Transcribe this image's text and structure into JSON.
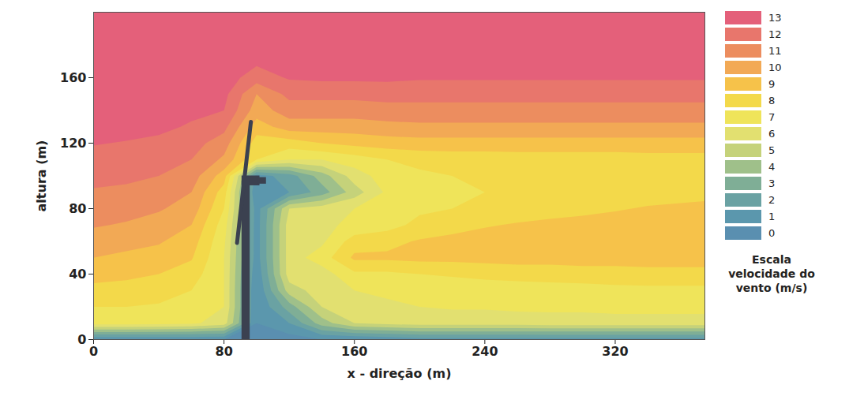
{
  "chart_data": {
    "type": "heatmap",
    "x_label": "x - direção (m)",
    "y_label": "altura (m)",
    "xlim": [
      0,
      375
    ],
    "ylim": [
      0,
      200
    ],
    "xticks": [
      0,
      80,
      160,
      240,
      320
    ],
    "yticks": [
      0,
      40,
      80,
      120,
      160
    ],
    "x": [
      0,
      20,
      40,
      60,
      80,
      100,
      120,
      140,
      160,
      180,
      200,
      220,
      240,
      260,
      280,
      300,
      320,
      340,
      360,
      380
    ],
    "y": [
      0,
      10,
      20,
      30,
      40,
      50,
      60,
      70,
      80,
      90,
      100,
      110,
      120,
      130,
      140,
      150,
      160,
      170,
      180,
      190,
      200
    ],
    "wind_speed": [
      [
        1,
        1,
        1,
        1,
        1,
        0.5,
        0.5,
        1,
        1,
        1.2,
        1.5,
        1.5,
        1.5,
        1.5,
        1.5,
        1.5,
        1.5,
        1.5,
        1.5,
        1.5
      ],
      [
        7.5,
        7.5,
        7.4,
        7.2,
        6.5,
        1,
        2,
        4.5,
        6,
        6.3,
        6.5,
        6.5,
        6.5,
        6.5,
        6.6,
        6.6,
        6.6,
        6.6,
        6.6,
        6.6
      ],
      [
        8,
        8,
        7.9,
        7.6,
        7,
        1,
        3.5,
        6,
        6.5,
        6.8,
        7,
        7.1,
        7.1,
        7.2,
        7.2,
        7.2,
        7.3,
        7.3,
        7.3,
        7.3
      ],
      [
        8.6,
        8.5,
        8.4,
        8,
        7,
        1,
        5.5,
        6.5,
        7,
        7.2,
        7.5,
        7.5,
        7.6,
        7.6,
        7.7,
        7.7,
        7.8,
        7.8,
        7.8,
        7.8
      ],
      [
        9.5,
        9.3,
        9,
        8.5,
        7,
        1.2,
        6.5,
        6.5,
        7.8,
        7.8,
        8,
        8.1,
        8.2,
        8.3,
        8.3,
        8.4,
        8.4,
        8.5,
        8.5,
        8.5
      ],
      [
        10,
        9.8,
        9.6,
        9.1,
        7,
        1.5,
        6.5,
        7.5,
        9.2,
        9.2,
        9.3,
        9.3,
        9.4,
        9.5,
        9.5,
        9.6,
        9.6,
        9.7,
        9.7,
        9.7
      ],
      [
        10.5,
        10.3,
        10.1,
        9.5,
        7.2,
        1.5,
        6.5,
        6.8,
        8.5,
        8.7,
        9.1,
        9.3,
        9.5,
        9.6,
        9.6,
        9.7,
        9.7,
        9.8,
        9.8,
        9.8
      ],
      [
        11.1,
        10.9,
        10.6,
        10,
        7.5,
        1.5,
        6.5,
        6.8,
        7.2,
        7.6,
        8.3,
        8.6,
        8.9,
        9.1,
        9.3,
        9.4,
        9.5,
        9.6,
        9.7,
        9.7
      ],
      [
        11.5,
        11.4,
        11.1,
        10.6,
        8,
        1.5,
        6,
        6.5,
        7,
        7.3,
        7.8,
        8,
        8.2,
        8.4,
        8.5,
        8.7,
        8.9,
        9.1,
        9.2,
        9.3
      ],
      [
        11.9,
        11.8,
        11.6,
        11,
        8.5,
        1,
        2,
        3.5,
        5.5,
        7.2,
        7.7,
        7.9,
        8,
        8.1,
        8.2,
        8.3,
        8.4,
        8.5,
        8.6,
        8.7
      ],
      [
        12.3,
        12.2,
        12,
        11.5,
        9.5,
        1.5,
        2.5,
        4.5,
        6.5,
        7.5,
        7.8,
        8,
        8,
        8.1,
        8.1,
        8.2,
        8.2,
        8.3,
        8.3,
        8.3
      ],
      [
        12.7,
        12.6,
        12.4,
        12,
        10.8,
        8,
        7,
        7,
        7.5,
        8,
        8.3,
        8.4,
        8.4,
        8.5,
        8.5,
        8.5,
        8.5,
        8.6,
        8.6,
        8.6
      ],
      [
        13.05,
        12.95,
        12.8,
        12.4,
        11.5,
        8.5,
        8.5,
        9,
        9.3,
        9.5,
        9.6,
        9.6,
        9.6,
        9.6,
        9.6,
        9.6,
        9.6,
        9.6,
        9.6,
        9.6
      ],
      [
        13.4,
        13.3,
        13.2,
        12.9,
        12.3,
        9.5,
        10.5,
        10.5,
        10.5,
        10.7,
        10.8,
        10.8,
        10.8,
        10.8,
        10.8,
        10.8,
        10.8,
        10.8,
        10.8,
        10.8
      ],
      [
        13.5,
        13.5,
        13.5,
        13.2,
        13,
        10.5,
        11.5,
        11.5,
        11.5,
        11.6,
        11.6,
        11.6,
        11.6,
        11.6,
        11.6,
        11.6,
        11.6,
        11.6,
        11.6,
        11.6
      ],
      [
        13.5,
        13.5,
        13.5,
        13.5,
        13.3,
        11,
        12.3,
        12.3,
        12.3,
        12.4,
        12.4,
        12.4,
        12.4,
        12.4,
        12.4,
        12.4,
        12.4,
        12.4,
        12.4,
        12.4
      ],
      [
        13.5,
        13.5,
        13.5,
        13.5,
        13.5,
        12.5,
        13.1,
        13.2,
        13.2,
        13.2,
        13.1,
        13.1,
        13.1,
        13.1,
        13.1,
        13.1,
        13.1,
        13.1,
        13.1,
        13.1
      ],
      [
        13.5,
        13.5,
        13.5,
        13.5,
        13.5,
        13.2,
        13.5,
        13.5,
        13.5,
        13.5,
        13.5,
        13.5,
        13.5,
        13.5,
        13.5,
        13.5,
        13.5,
        13.5,
        13.5,
        13.5
      ],
      [
        13.5,
        13.5,
        13.5,
        13.5,
        13.5,
        13.5,
        13.5,
        13.5,
        13.5,
        13.5,
        13.5,
        13.5,
        13.5,
        13.5,
        13.5,
        13.5,
        13.5,
        13.5,
        13.5,
        13.5
      ],
      [
        13.5,
        13.5,
        13.5,
        13.5,
        13.5,
        13.5,
        13.5,
        13.5,
        13.5,
        13.5,
        13.5,
        13.5,
        13.5,
        13.5,
        13.5,
        13.5,
        13.5,
        13.5,
        13.5,
        13.5
      ],
      [
        13.5,
        13.5,
        13.5,
        13.5,
        13.5,
        13.5,
        13.5,
        13.5,
        13.5,
        13.5,
        13.5,
        13.5,
        13.5,
        13.5,
        13.5,
        13.5,
        13.5,
        13.5,
        13.5,
        13.5
      ]
    ],
    "colorbar": {
      "label": "Escala velocidade do vento (m/s)",
      "range": [
        0,
        13
      ],
      "ticks": [
        0,
        1,
        2,
        3,
        4,
        5,
        6,
        7,
        8,
        9,
        10,
        11,
        12,
        13
      ]
    },
    "colors": [
      "#5a8fb0",
      "#5b97ad",
      "#6aa2a3",
      "#7fae96",
      "#9fc08a",
      "#c5d27a",
      "#e2e070",
      "#efe45a",
      "#f3d94a",
      "#f6c24a",
      "#f2a955",
      "#ec8d5f",
      "#e8766c",
      "#e4607a"
    ]
  }
}
